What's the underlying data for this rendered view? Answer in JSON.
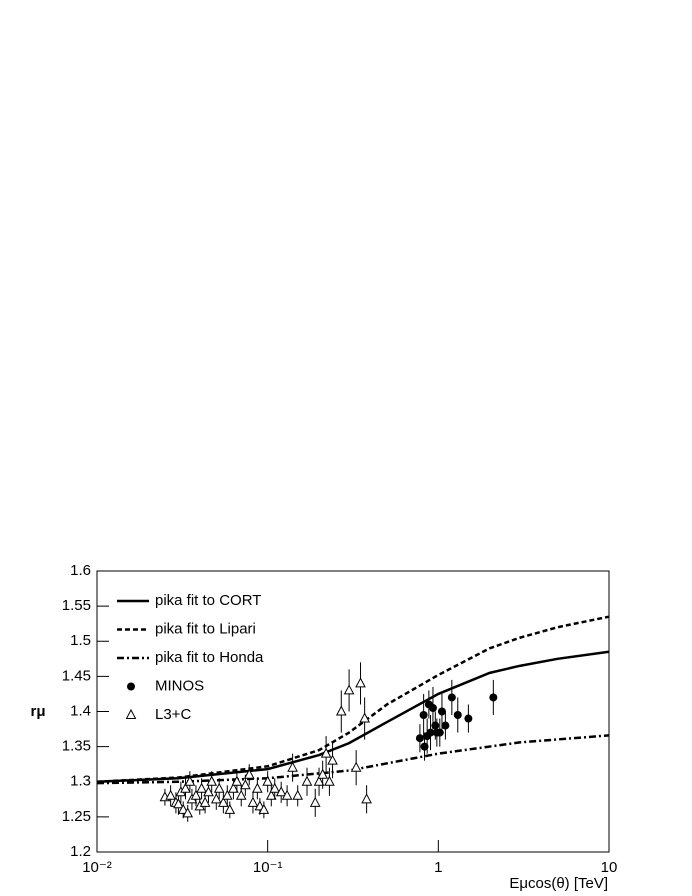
{
  "chart_data": {
    "type": "line-scatter",
    "xlabel": "Eμcos(θ) [TeV]",
    "ylabel": "rμ",
    "xlim": [
      0.01,
      10
    ],
    "ylim": [
      1.2,
      1.6
    ],
    "xscale": "log",
    "xticks": [
      {
        "value": 0.01,
        "label": "10⁻²"
      },
      {
        "value": 0.1,
        "label": "10⁻¹"
      },
      1,
      10
    ],
    "yticks": [
      1.2,
      1.25,
      1.3,
      1.35,
      1.4,
      1.45,
      1.5,
      1.55,
      1.6
    ],
    "legend": "upper left",
    "series": [
      {
        "name": "pika fit to CORT",
        "kind": "line",
        "style": "solid",
        "color": "#000000",
        "x": [
          0.01,
          0.03,
          0.1,
          0.2,
          0.3,
          0.5,
          1,
          2,
          3,
          5,
          10
        ],
        "values": [
          1.3,
          1.305,
          1.318,
          1.338,
          1.355,
          1.385,
          1.425,
          1.455,
          1.465,
          1.475,
          1.485
        ]
      },
      {
        "name": "pika fit to Lipari",
        "kind": "line",
        "style": "dash",
        "color": "#000000",
        "x": [
          0.01,
          0.03,
          0.1,
          0.2,
          0.3,
          0.5,
          1,
          2,
          3,
          5,
          10
        ],
        "values": [
          1.3,
          1.306,
          1.322,
          1.345,
          1.37,
          1.41,
          1.452,
          1.49,
          1.505,
          1.52,
          1.535
        ]
      },
      {
        "name": "pika fit to Honda",
        "kind": "line",
        "style": "dashdot",
        "color": "#000000",
        "x": [
          0.01,
          0.03,
          0.1,
          0.3,
          1,
          3,
          10
        ],
        "values": [
          1.298,
          1.3,
          1.305,
          1.316,
          1.34,
          1.356,
          1.366
        ]
      },
      {
        "name": "MINOS",
        "kind": "points",
        "marker": "circle",
        "color": "#000000",
        "x": [
          0.78,
          0.82,
          0.83,
          0.86,
          0.88,
          0.9,
          0.93,
          0.96,
          0.98,
          1.02,
          1.05,
          1.1,
          1.2,
          1.3,
          1.5,
          2.1
        ],
        "values": [
          1.362,
          1.395,
          1.35,
          1.365,
          1.41,
          1.37,
          1.405,
          1.38,
          1.37,
          1.37,
          1.4,
          1.38,
          1.42,
          1.395,
          1.39,
          1.42
        ],
        "errors": [
          0.02,
          0.03,
          0.02,
          0.025,
          0.02,
          0.025,
          0.03,
          0.02,
          0.02,
          0.02,
          0.025,
          0.02,
          0.025,
          0.025,
          0.02,
          0.025
        ]
      },
      {
        "name": "L3+C",
        "kind": "points",
        "marker": "triangle-open",
        "color": "#000000",
        "x": [
          0.025,
          0.027,
          0.029,
          0.03,
          0.031,
          0.032,
          0.033,
          0.034,
          0.035,
          0.036,
          0.038,
          0.04,
          0.041,
          0.043,
          0.045,
          0.047,
          0.05,
          0.052,
          0.055,
          0.058,
          0.06,
          0.063,
          0.066,
          0.07,
          0.074,
          0.078,
          0.082,
          0.087,
          0.09,
          0.095,
          0.1,
          0.105,
          0.11,
          0.12,
          0.13,
          0.14,
          0.15,
          0.17,
          0.19,
          0.2,
          0.21,
          0.22,
          0.23,
          0.24,
          0.27,
          0.3,
          0.33,
          0.35,
          0.37,
          0.38
        ],
        "values": [
          1.278,
          1.28,
          1.27,
          1.268,
          1.285,
          1.26,
          1.29,
          1.255,
          1.3,
          1.275,
          1.28,
          1.265,
          1.29,
          1.27,
          1.285,
          1.3,
          1.275,
          1.29,
          1.27,
          1.28,
          1.26,
          1.29,
          1.3,
          1.28,
          1.295,
          1.31,
          1.27,
          1.29,
          1.265,
          1.26,
          1.3,
          1.28,
          1.29,
          1.285,
          1.28,
          1.32,
          1.28,
          1.3,
          1.27,
          1.3,
          1.31,
          1.34,
          1.3,
          1.33,
          1.4,
          1.43,
          1.32,
          1.44,
          1.39,
          1.275
        ],
        "errors": [
          0.012,
          0.015,
          0.015,
          0.015,
          0.015,
          0.012,
          0.015,
          0.012,
          0.015,
          0.015,
          0.015,
          0.012,
          0.015,
          0.015,
          0.015,
          0.015,
          0.015,
          0.015,
          0.015,
          0.015,
          0.012,
          0.015,
          0.015,
          0.015,
          0.015,
          0.015,
          0.015,
          0.015,
          0.012,
          0.012,
          0.015,
          0.015,
          0.015,
          0.015,
          0.015,
          0.02,
          0.015,
          0.02,
          0.02,
          0.02,
          0.02,
          0.025,
          0.02,
          0.025,
          0.03,
          0.03,
          0.025,
          0.03,
          0.03,
          0.02
        ]
      }
    ]
  }
}
